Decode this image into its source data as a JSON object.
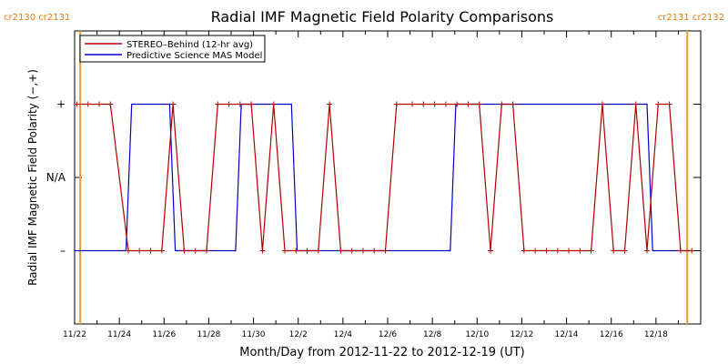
{
  "chart_data": {
    "type": "line",
    "title": "Radial IMF Magnetic Field Polarity Comparisons",
    "xlabel": "Month/Day from 2012-11-22 to 2012-12-19 (UT)",
    "ylabel": "Radial IMF Magnetic Field Polarity (−,+)",
    "xlim": [
      0,
      28
    ],
    "ylim": [
      -2,
      2
    ],
    "x_tick_labels": [
      {
        "x": 0,
        "label": "11/22"
      },
      {
        "x": 2,
        "label": "11/24"
      },
      {
        "x": 4,
        "label": "11/26"
      },
      {
        "x": 6,
        "label": "11/28"
      },
      {
        "x": 8,
        "label": "11/30"
      },
      {
        "x": 10,
        "label": "12/2"
      },
      {
        "x": 12,
        "label": "12/4"
      },
      {
        "x": 14,
        "label": "12/6"
      },
      {
        "x": 16,
        "label": "12/8"
      },
      {
        "x": 18,
        "label": "12/10"
      },
      {
        "x": 20,
        "label": "12/12"
      },
      {
        "x": 22,
        "label": "12/14"
      },
      {
        "x": 24,
        "label": "12/16"
      },
      {
        "x": 26,
        "label": "12/18"
      }
    ],
    "y_tick_labels": [
      {
        "y": 1,
        "label": "+"
      },
      {
        "y": 0,
        "label": "N/A"
      },
      {
        "y": -1,
        "label": "–"
      }
    ],
    "carrington_markers": [
      {
        "x": 0.25,
        "label": "cr2130 cr2131",
        "side": "left"
      },
      {
        "x": 27.4,
        "label": "cr2131 cr2132",
        "side": "right"
      }
    ],
    "legend_position": "top-left",
    "series": [
      {
        "name": "STEREO–Behind (12-hr avg)",
        "color": "#b00000",
        "markers": true,
        "points": [
          [
            0.1,
            1
          ],
          [
            0.6,
            1
          ],
          [
            1.1,
            1
          ],
          [
            1.6,
            1
          ],
          [
            2.4,
            -1
          ],
          [
            2.9,
            -1
          ],
          [
            3.4,
            -1
          ],
          [
            3.9,
            -1
          ],
          [
            4.4,
            1
          ],
          [
            4.9,
            -1
          ],
          [
            5.4,
            -1
          ],
          [
            5.9,
            -1
          ],
          [
            6.4,
            1
          ],
          [
            6.9,
            1
          ],
          [
            7.4,
            1
          ],
          [
            7.9,
            1
          ],
          [
            8.4,
            -1
          ],
          [
            8.9,
            1
          ],
          [
            9.4,
            -1
          ],
          [
            9.9,
            -1
          ],
          [
            10.4,
            -1
          ],
          [
            10.9,
            -1
          ],
          [
            11.4,
            1
          ],
          [
            11.9,
            -1
          ],
          [
            12.4,
            -1
          ],
          [
            12.9,
            -1
          ],
          [
            13.4,
            -1
          ],
          [
            13.9,
            -1
          ],
          [
            14.4,
            1
          ],
          [
            15.1,
            1
          ],
          [
            15.6,
            1
          ],
          [
            16.1,
            1
          ],
          [
            16.6,
            1
          ],
          [
            17.1,
            1
          ],
          [
            17.6,
            1
          ],
          [
            18.1,
            1
          ],
          [
            18.6,
            -1
          ],
          [
            19.1,
            1
          ],
          [
            19.6,
            1
          ],
          [
            20.1,
            -1
          ],
          [
            20.6,
            -1
          ],
          [
            21.1,
            -1
          ],
          [
            21.6,
            -1
          ],
          [
            22.1,
            -1
          ],
          [
            22.6,
            -1
          ],
          [
            23.1,
            -1
          ],
          [
            23.6,
            1
          ],
          [
            24.1,
            -1
          ],
          [
            24.6,
            -1
          ],
          [
            25.1,
            1
          ],
          [
            25.6,
            -1
          ],
          [
            26.1,
            1
          ],
          [
            26.6,
            1
          ],
          [
            27.1,
            -1
          ],
          [
            27.6,
            -1
          ]
        ]
      },
      {
        "name": "Predictive Science MAS Model",
        "color": "#0000c8",
        "markers": false,
        "points": [
          [
            0,
            -1
          ],
          [
            2.3,
            -1
          ],
          [
            2.55,
            1
          ],
          [
            4.25,
            1
          ],
          [
            4.5,
            -1
          ],
          [
            7.2,
            -1
          ],
          [
            7.45,
            1
          ],
          [
            9.7,
            1
          ],
          [
            9.95,
            -1
          ],
          [
            16.8,
            -1
          ],
          [
            17.05,
            1
          ],
          [
            25.6,
            1
          ],
          [
            25.85,
            -1
          ],
          [
            27.5,
            -1
          ]
        ]
      }
    ]
  }
}
